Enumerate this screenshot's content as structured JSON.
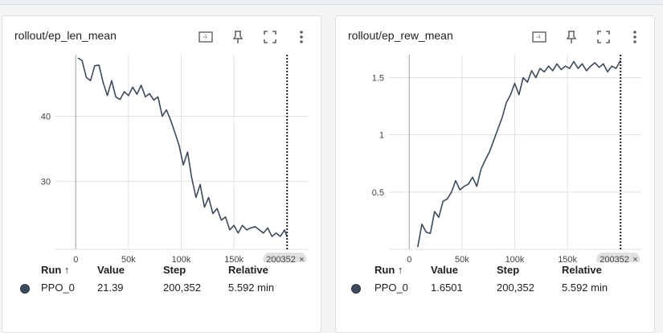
{
  "cards": [
    {
      "title": "rollout/ep_len_mean",
      "chart_data": {
        "type": "line",
        "xlabel": "",
        "ylabel": "",
        "xlim": [
          -20000,
          220000
        ],
        "ylim": [
          19.5,
          49.5
        ],
        "x_ticks": [
          0,
          50000,
          100000,
          150000
        ],
        "x_tick_labels": [
          "0",
          "50k",
          "100k",
          "150k"
        ],
        "y_ticks": [
          30,
          40
        ],
        "y_tick_labels": [
          "30",
          "40"
        ],
        "marker_label": "200352",
        "marker_x": 200352,
        "series": [
          {
            "color": "#3d4a5c",
            "x": [
              2000,
              6000,
              10000,
              14000,
              18000,
              22000,
              26000,
              30000,
              34000,
              38000,
              42000,
              46000,
              50000,
              54000,
              58000,
              62000,
              66000,
              70000,
              74000,
              78000,
              82000,
              86000,
              90000,
              94000,
              98000,
              102000,
              106000,
              110000,
              114000,
              118000,
              122000,
              126000,
              130000,
              134000,
              138000,
              142000,
              146000,
              150000,
              154000,
              158000,
              162000,
              166000,
              170000,
              174000,
              178000,
              182000,
              186000,
              190000,
              194000,
              198000,
              200352
            ],
            "y": [
              49.0,
              48.6,
              46.0,
              45.5,
              47.8,
              47.9,
              45.2,
              43.2,
              45.5,
              43.0,
              42.6,
              43.8,
              43.2,
              44.5,
              43.4,
              44.8,
              43.0,
              43.5,
              42.5,
              43.0,
              40.0,
              41.0,
              39.4,
              37.5,
              35.5,
              32.5,
              34.5,
              30.5,
              27.5,
              29.5,
              26.0,
              27.5,
              25.0,
              25.8,
              24.0,
              24.5,
              22.5,
              23.2,
              22.0,
              23.2,
              22.5,
              22.8,
              23.0,
              22.5,
              22.0,
              22.8,
              21.5,
              22.0,
              21.5,
              22.5,
              21.39
            ]
          }
        ]
      },
      "table": {
        "headers": {
          "run": "Run ↑",
          "value": "Value",
          "step": "Step",
          "relative": "Relative"
        },
        "rows": [
          {
            "run": "PPO_0",
            "value": "21.39",
            "step": "200,352",
            "relative": "5.592 min",
            "color": "#3d4a5c"
          }
        ]
      }
    },
    {
      "title": "rollout/ep_rew_mean",
      "chart_data": {
        "type": "line",
        "xlabel": "",
        "ylabel": "",
        "xlim": [
          -20000,
          220000
        ],
        "ylim": [
          0.0,
          1.7
        ],
        "x_ticks": [
          0,
          50000,
          100000,
          150000
        ],
        "x_tick_labels": [
          "0",
          "50k",
          "100k",
          "150k"
        ],
        "y_ticks": [
          0.5,
          1,
          1.5
        ],
        "y_tick_labels": [
          "0.5",
          "1",
          "1.5"
        ],
        "marker_label": "200352",
        "marker_x": 200352,
        "series": [
          {
            "color": "#3d4a5c",
            "x": [
              8000,
              12000,
              16000,
              20000,
              24000,
              28000,
              32000,
              36000,
              40000,
              44000,
              48000,
              52000,
              56000,
              60000,
              64000,
              68000,
              72000,
              76000,
              80000,
              84000,
              88000,
              92000,
              96000,
              100000,
              104000,
              108000,
              112000,
              116000,
              120000,
              124000,
              128000,
              132000,
              136000,
              140000,
              144000,
              148000,
              152000,
              156000,
              160000,
              164000,
              168000,
              172000,
              176000,
              180000,
              184000,
              188000,
              192000,
              196000,
              200352
            ],
            "y": [
              0.02,
              0.22,
              0.15,
              0.14,
              0.33,
              0.28,
              0.42,
              0.44,
              0.5,
              0.6,
              0.52,
              0.55,
              0.57,
              0.63,
              0.55,
              0.7,
              0.78,
              0.85,
              0.95,
              1.05,
              1.15,
              1.28,
              1.35,
              1.45,
              1.35,
              1.5,
              1.46,
              1.56,
              1.5,
              1.58,
              1.55,
              1.6,
              1.56,
              1.62,
              1.57,
              1.6,
              1.58,
              1.64,
              1.58,
              1.62,
              1.56,
              1.6,
              1.63,
              1.59,
              1.62,
              1.55,
              1.6,
              1.58,
              1.65
            ]
          }
        ]
      },
      "table": {
        "headers": {
          "run": "Run ↑",
          "value": "Value",
          "step": "Step",
          "relative": "Relative"
        },
        "rows": [
          {
            "run": "PPO_0",
            "value": "1.6501",
            "step": "200,352",
            "relative": "5.592 min",
            "color": "#3d4a5c"
          }
        ]
      }
    }
  ]
}
